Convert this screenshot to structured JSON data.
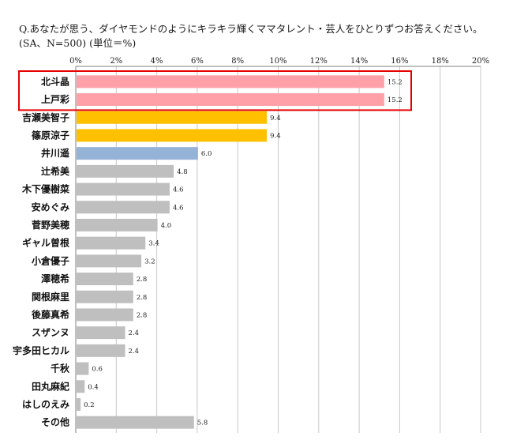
{
  "header": {
    "title": "Q.あなたが思う、ダイヤモンドのようにキラキラ輝くママタレント・芸人をひとりずつお答えください。",
    "subtitle": "(SA、N=500) (単位＝%)"
  },
  "chart_data": {
    "type": "bar",
    "orientation": "horizontal",
    "xlim": [
      0,
      20
    ],
    "ticks": [
      "0%",
      "2%",
      "4%",
      "6%",
      "8%",
      "10%",
      "12%",
      "14%",
      "16%",
      "18%",
      "20%"
    ],
    "tick_values": [
      0,
      2,
      4,
      6,
      8,
      10,
      12,
      14,
      16,
      18,
      20
    ],
    "grid": true,
    "categories": [
      "北斗晶",
      "上戸彩",
      "吉瀬美智子",
      "篠原涼子",
      "井川遥",
      "辻希美",
      "木下優樹菜",
      "安めぐみ",
      "菅野美穂",
      "ギャル曽根",
      "小倉優子",
      "澤穂希",
      "関根麻里",
      "後藤真希",
      "スザンヌ",
      "宇多田ヒカル",
      "千秋",
      "田丸麻紀",
      "はしのえみ",
      "その他"
    ],
    "values": [
      15.2,
      15.2,
      9.4,
      9.4,
      6.0,
      4.8,
      4.6,
      4.6,
      4.0,
      3.4,
      3.2,
      2.8,
      2.8,
      2.8,
      2.4,
      2.4,
      0.6,
      0.4,
      0.2,
      5.8
    ],
    "value_labels": [
      "15.2",
      "15.2",
      "9.4",
      "9.4",
      "6.0",
      "4.8",
      "4.6",
      "4.6",
      "4.0",
      "3.4",
      "3.2",
      "2.8",
      "2.8",
      "2.8",
      "2.4",
      "2.4",
      "0.6",
      "0.4",
      "0.2",
      "5.8"
    ],
    "colors": [
      "#ffa0a8",
      "#ffa0a8",
      "#ffc000",
      "#ffc000",
      "#95b3d7",
      "#bfbfbf",
      "#bfbfbf",
      "#bfbfbf",
      "#bfbfbf",
      "#bfbfbf",
      "#bfbfbf",
      "#bfbfbf",
      "#bfbfbf",
      "#bfbfbf",
      "#bfbfbf",
      "#bfbfbf",
      "#bfbfbf",
      "#bfbfbf",
      "#bfbfbf",
      "#bfbfbf"
    ],
    "highlight_color": "#e60000"
  }
}
